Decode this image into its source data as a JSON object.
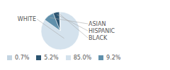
{
  "chart_data": {
    "type": "pie",
    "categories": [
      "WHITE",
      "ASIAN",
      "HISPANIC",
      "BLACK"
    ],
    "values": [
      85.0,
      9.2,
      5.2,
      0.7
    ],
    "value_labels": [
      "85.0%",
      "9.2%",
      "5.2%",
      "0.7%"
    ],
    "colors": [
      "#d4e2ed",
      "#6090ab",
      "#2b5470",
      "#c4d5e2"
    ],
    "legend": "bottom"
  }
}
